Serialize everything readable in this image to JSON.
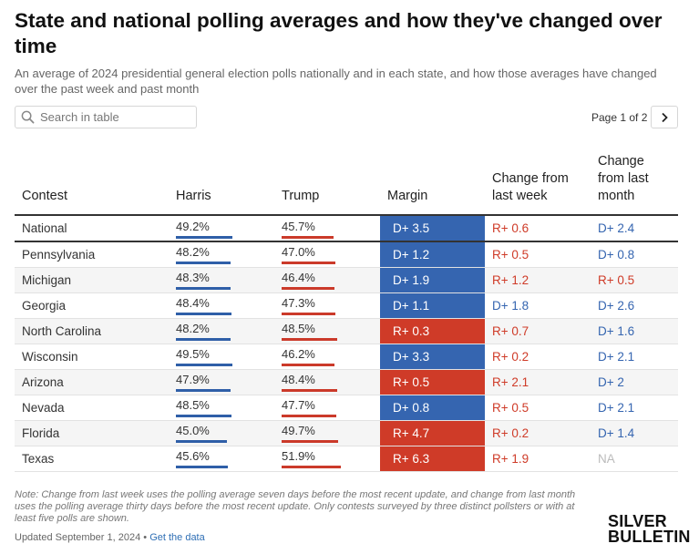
{
  "title": "State and national polling averages and how they've changed over time",
  "subtitle": "An average of 2024 presidential general election polls nationally and in each state, and how those averages have changed over the past week and past month",
  "search": {
    "placeholder": "Search in table",
    "icon": "search-icon"
  },
  "pager": {
    "label": "Page 1 of 2",
    "next_icon": "chevron-right-icon"
  },
  "colors": {
    "harris": "#3565b0",
    "trump": "#cf3b28"
  },
  "chart_data": {
    "type": "table",
    "columns": [
      "Contest",
      "Harris",
      "Trump",
      "Margin",
      "Change from last week",
      "Change from last month"
    ],
    "rows": [
      {
        "contest": "National",
        "harris": "49.2%",
        "trump": "45.7%",
        "margin": "D+ 3.5",
        "week": "R+ 0.6",
        "month": "D+ 2.4"
      },
      {
        "contest": "Pennsylvania",
        "harris": "48.2%",
        "trump": "47.0%",
        "margin": "D+ 1.2",
        "week": "R+ 0.5",
        "month": "D+ 0.8"
      },
      {
        "contest": "Michigan",
        "harris": "48.3%",
        "trump": "46.4%",
        "margin": "D+ 1.9",
        "week": "R+ 1.2",
        "month": "R+ 0.5"
      },
      {
        "contest": "Georgia",
        "harris": "48.4%",
        "trump": "47.3%",
        "margin": "D+ 1.1",
        "week": "D+ 1.8",
        "month": "D+ 2.6"
      },
      {
        "contest": "North Carolina",
        "harris": "48.2%",
        "trump": "48.5%",
        "margin": "R+ 0.3",
        "week": "R+ 0.7",
        "month": "D+ 1.6"
      },
      {
        "contest": "Wisconsin",
        "harris": "49.5%",
        "trump": "46.2%",
        "margin": "D+ 3.3",
        "week": "R+ 0.2",
        "month": "D+ 2.1"
      },
      {
        "contest": "Arizona",
        "harris": "47.9%",
        "trump": "48.4%",
        "margin": "R+ 0.5",
        "week": "R+ 2.1",
        "month": "D+ 2"
      },
      {
        "contest": "Nevada",
        "harris": "48.5%",
        "trump": "47.7%",
        "margin": "D+ 0.8",
        "week": "R+ 0.5",
        "month": "D+ 2.1"
      },
      {
        "contest": "Florida",
        "harris": "45.0%",
        "trump": "49.7%",
        "margin": "R+ 4.7",
        "week": "R+ 0.2",
        "month": "D+ 1.4"
      },
      {
        "contest": "Texas",
        "harris": "45.6%",
        "trump": "51.9%",
        "margin": "R+ 6.3",
        "week": "R+ 1.9",
        "month": "NA"
      }
    ]
  },
  "note": "Note: Change from last week uses the polling average seven days before the most recent update, and change from last month uses the polling average thirty days before the most recent update. Only contests surveyed by three distinct pollsters or with at least five polls are shown.",
  "updated": {
    "text": "Updated September 1, 2024 • ",
    "link": "Get the data"
  },
  "logo": {
    "line1": "SILVER",
    "line2": "BULLETIN"
  }
}
